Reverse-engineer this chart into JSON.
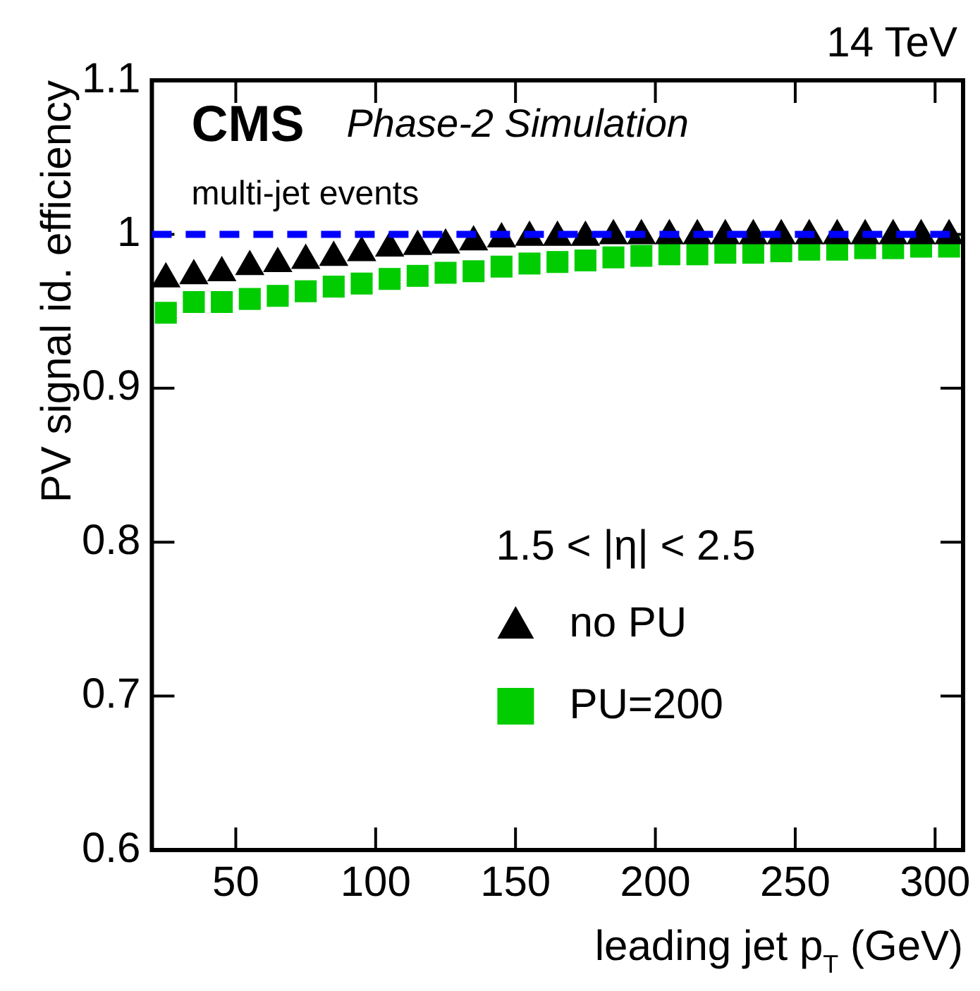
{
  "chart_data": {
    "type": "scatter",
    "xlabel": "leading jet p$_{T}$ (GeV)",
    "ylabel": "PV signal id. efficiency",
    "annotations": [
      "CMS",
      "Phase-2 Simulation",
      "multi-jet events",
      "14 TeV",
      "1.5 < |η| < 2.5"
    ],
    "x": [
      25,
      35,
      45,
      55,
      65,
      75,
      85,
      95,
      105,
      115,
      125,
      135,
      145,
      155,
      165,
      175,
      185,
      195,
      205,
      215,
      225,
      235,
      245,
      255,
      265,
      275,
      285,
      295,
      305
    ],
    "series": [
      {
        "name": "no PU",
        "color": "#000000",
        "marker": "triangle",
        "values": [
          0.971,
          0.973,
          0.975,
          0.979,
          0.981,
          0.983,
          0.985,
          0.988,
          0.991,
          0.992,
          0.993,
          0.995,
          0.997,
          0.998,
          0.998,
          0.998,
          0.999,
          0.999,
          0.999,
          0.999,
          0.999,
          0.999,
          0.999,
          0.999,
          0.999,
          0.999,
          0.999,
          0.999,
          0.999
        ]
      },
      {
        "name": "PU=200",
        "color": "#00cc00",
        "marker": "square",
        "values": [
          0.949,
          0.956,
          0.956,
          0.958,
          0.96,
          0.963,
          0.966,
          0.968,
          0.971,
          0.973,
          0.975,
          0.976,
          0.979,
          0.981,
          0.982,
          0.983,
          0.985,
          0.986,
          0.987,
          0.987,
          0.988,
          0.988,
          0.989,
          0.99,
          0.99,
          0.991,
          0.991,
          0.992,
          0.992
        ]
      }
    ],
    "ref_lines": [
      {
        "axis": "y",
        "value": 1,
        "color": "#0000ff",
        "line_style": "dashed"
      }
    ],
    "xlim": [
      20,
      310
    ],
    "xticks": [
      50,
      100,
      150,
      200,
      250,
      300
    ],
    "ylim": [
      0.6,
      1.1
    ],
    "yticks": [
      0.6,
      0.7,
      0.8,
      0.9,
      1,
      1.1
    ],
    "grid": false,
    "legend": "bottom right"
  }
}
